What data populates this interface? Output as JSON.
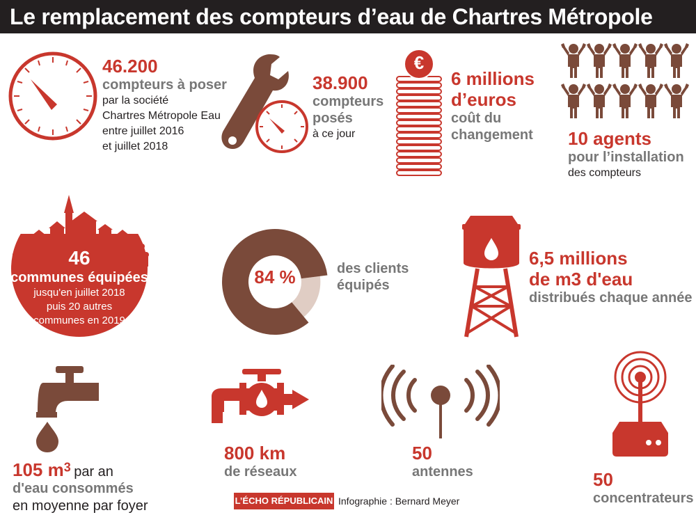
{
  "title": "Le remplacement des compteurs d’eau de Chartres Métropole",
  "meters_to_install": {
    "value": "46.200",
    "label": "compteurs à poser",
    "detail": [
      "par la société",
      "Chartres Métropole Eau",
      "entre juillet 2016",
      "et juillet 2018"
    ]
  },
  "meters_installed": {
    "value": "38.900",
    "label": [
      "compteurs",
      "posés"
    ],
    "detail": "à ce jour"
  },
  "cost": {
    "value": [
      "6 millions",
      "d’euros"
    ],
    "label": [
      "coût du",
      "changement"
    ],
    "coin_symbol": "€"
  },
  "agents": {
    "value": "10 agents",
    "label": "pour l’installation",
    "detail": "des compteurs"
  },
  "communes": {
    "value": "46",
    "label": "communes équipées",
    "detail": [
      "jusqu'en juillet 2018",
      "puis 20 autres",
      "communes en 2019"
    ]
  },
  "clients": {
    "value": "84 %",
    "label": [
      "des clients",
      "équipés"
    ],
    "fraction": 0.84
  },
  "water_volume": {
    "value": [
      "6,5 millions",
      "de m3 d'eau"
    ],
    "label": "distribués chaque année"
  },
  "consumption": {
    "value": "105 m",
    "sup": "3",
    "after": "par an",
    "line2": "d'eau  consommés",
    "line3": "en moyenne par foyer"
  },
  "network": {
    "value": "800 km",
    "label": "de réseaux"
  },
  "antennas": {
    "value": "50",
    "label": "antennes"
  },
  "concentrators": {
    "value": "50",
    "label": "concentrateurs"
  },
  "footer": {
    "logo": "L’ÉCHO RÉPUBLICAIN",
    "credit": "Infographie : Bernard Meyer"
  },
  "colors": {
    "red": "#c8372d",
    "brown": "#7a4a3a",
    "grey": "#777777",
    "pale": "#e0cdc4",
    "dark": "#231f20"
  },
  "icons": [
    "gauge-icon",
    "wrench-icon",
    "coin-stack-icon",
    "person-icon",
    "village-icon",
    "water-tower-icon",
    "tap-icon",
    "pipe-valve-icon",
    "antenna-icon",
    "concentrator-icon"
  ]
}
